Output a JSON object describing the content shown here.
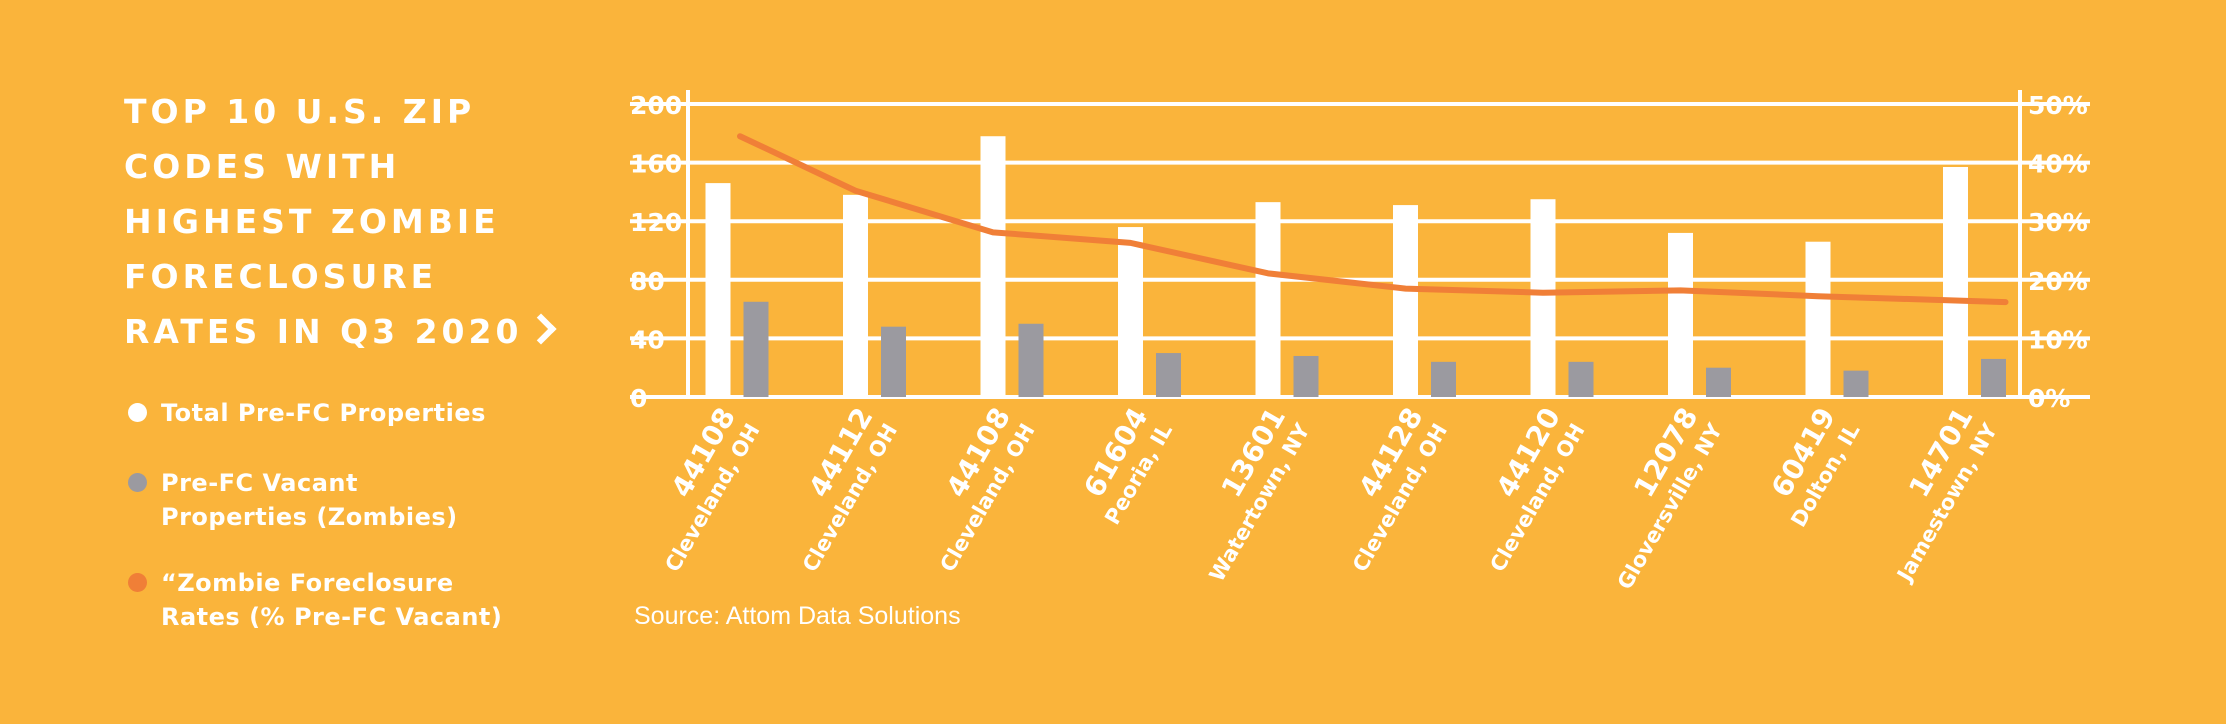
{
  "title": "TOP 10 U.S. ZIP\nCODES WITH\nHIGHEST ZOMBIE\nFORECLOSURE\nRATES IN Q3 2020",
  "legend": [
    {
      "label": "Total Pre-FC Properties",
      "color": "#ffffff"
    },
    {
      "label": "Pre-FC Vacant\nProperties (Zombies)",
      "color": "#9b9aa0"
    },
    {
      "label": "“Zombie Foreclosure\nRates (% Pre-FC Vacant)",
      "color": "#f07f37"
    }
  ],
  "source": "Source: Attom Data Solutions",
  "colors": {
    "background": "#fab43b",
    "bar_total": "#ffffff",
    "bar_vacant": "#9b9aa0",
    "line_rate": "#f07f37",
    "grid": "#ffffff"
  },
  "chart_data": {
    "type": "bar",
    "categories": [
      {
        "zip": "44108",
        "city": "Cleveland, OH"
      },
      {
        "zip": "44112",
        "city": "Cleveland, OH"
      },
      {
        "zip": "44108",
        "city": "Cleveland, OH"
      },
      {
        "zip": "61604",
        "city": "Peoria, IL"
      },
      {
        "zip": "13601",
        "city": "Watertown, NY"
      },
      {
        "zip": "44128",
        "city": "Cleveland, OH"
      },
      {
        "zip": "44120",
        "city": "Cleveland, OH"
      },
      {
        "zip": "12078",
        "city": "Gloversville, NY"
      },
      {
        "zip": "60419",
        "city": "Dolton, IL"
      },
      {
        "zip": "14701",
        "city": "Jamestown, NY"
      }
    ],
    "series": [
      {
        "name": "Total Pre-FC Properties",
        "axis": "left",
        "kind": "bar",
        "values": [
          146,
          138,
          178,
          116,
          133,
          131,
          135,
          112,
          106,
          157
        ]
      },
      {
        "name": "Pre-FC Vacant Properties (Zombies)",
        "axis": "left",
        "kind": "bar",
        "values": [
          65,
          48,
          50,
          30,
          28,
          24,
          24,
          20,
          18,
          26
        ]
      },
      {
        "name": "“Zombie Foreclosure Rates (% Pre-FC Vacant)",
        "axis": "right",
        "kind": "line",
        "values": [
          44.5,
          35.2,
          28.1,
          26.3,
          21.1,
          18.5,
          17.8,
          18.2,
          17.2,
          16.2
        ]
      }
    ],
    "left_axis": {
      "ticks": [
        "0",
        "40",
        "80",
        "120",
        "160",
        "200"
      ],
      "ylim": [
        0,
        200
      ]
    },
    "right_axis": {
      "ticks": [
        "0%",
        "10%",
        "20%",
        "30%",
        "40%",
        "50%"
      ],
      "ylim": [
        0,
        50
      ]
    },
    "grid": true
  }
}
